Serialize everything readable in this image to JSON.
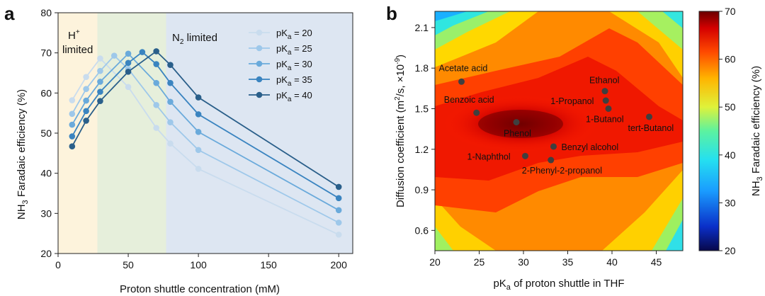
{
  "chart_data": [
    {
      "panel": "a",
      "type": "line",
      "xlabel": "Proton shuttle concentration (mM)",
      "ylabel": "NH3 Faradaic efficiency (%)",
      "xlim": [
        0,
        210
      ],
      "ylim": [
        20,
        80
      ],
      "xticks": [
        0,
        50,
        100,
        150,
        200
      ],
      "yticks": [
        20,
        30,
        40,
        50,
        60,
        70,
        80
      ],
      "regions": [
        {
          "label_main": "H",
          "label_sup": "+",
          "label_line2": "limited",
          "x0": 0,
          "x1": 28,
          "color": "#fdf3dc"
        },
        {
          "label_main": "",
          "x0": 28,
          "x1": 77,
          "color": "#e6efdb"
        },
        {
          "label_main": "N",
          "label_sub": "2",
          "label_after": " limited",
          "x0": 77,
          "x1": 210,
          "color": "#dde6f2"
        }
      ],
      "series": [
        {
          "label_pre": "pK",
          "label_sub": "a",
          "label_post": " = 20",
          "color": "#c9dcee",
          "x": [
            10,
            20,
            30,
            50,
            70,
            80,
            100,
            200
          ],
          "y": [
            58.2,
            64.0,
            68.6,
            61.5,
            51.3,
            47.4,
            41.1,
            24.7
          ]
        },
        {
          "label_pre": "pK",
          "label_sub": "a",
          "label_post": " = 25",
          "color": "#9ec8ea",
          "x": [
            10,
            20,
            30,
            40,
            50,
            70,
            80,
            100,
            200
          ],
          "y": [
            54.8,
            61.0,
            65.5,
            69.3,
            66.0,
            57.0,
            52.7,
            45.8,
            27.7
          ]
        },
        {
          "label_pre": "pK",
          "label_sub": "a",
          "label_post": " = 30",
          "color": "#6aaadb",
          "x": [
            10,
            20,
            30,
            50,
            70,
            80,
            100,
            200
          ],
          "y": [
            52.1,
            58.1,
            62.8,
            69.8,
            62.5,
            57.8,
            50.3,
            30.8
          ]
        },
        {
          "label_pre": "pK",
          "label_sub": "a",
          "label_post": " = 35",
          "color": "#3a84c0",
          "x": [
            10,
            20,
            30,
            50,
            60,
            70,
            80,
            100,
            200
          ],
          "y": [
            49.2,
            55.5,
            60.3,
            67.5,
            70.2,
            67.2,
            62.5,
            54.7,
            33.8
          ]
        },
        {
          "label_pre": "pK",
          "label_sub": "a",
          "label_post": " = 40",
          "color": "#2a5f8a",
          "x": [
            10,
            20,
            30,
            50,
            70,
            80,
            100,
            200
          ],
          "y": [
            46.7,
            53.1,
            58.0,
            65.3,
            70.4,
            67.0,
            58.9,
            36.6
          ]
        }
      ]
    },
    {
      "panel": "b",
      "type": "heatmap",
      "xlabel": "pKa of proton shuttle in THF",
      "ylabel": "Diffusion coefficient (m2/s, ×10-9)",
      "xlim": [
        20,
        48
      ],
      "ylim": [
        0.45,
        2.22
      ],
      "xticks": [
        20,
        25,
        30,
        35,
        40,
        45
      ],
      "yticks": [
        0.6,
        0.9,
        1.2,
        1.5,
        1.8,
        2.1
      ],
      "colorbar": {
        "label": "NH3 Faradaic efficiency (%)",
        "range": [
          20,
          70
        ],
        "ticks": [
          20,
          30,
          40,
          50,
          60,
          70
        ]
      },
      "points": [
        {
          "name": "Acetate acid",
          "x": 23.0,
          "y": 1.7
        },
        {
          "name": "Benzoic acid",
          "x": 24.7,
          "y": 1.47
        },
        {
          "name": "Phenol",
          "x": 29.2,
          "y": 1.4
        },
        {
          "name": "1-Naphthol",
          "x": 30.2,
          "y": 1.15
        },
        {
          "name": "Benzyl alcohol",
          "x": 33.4,
          "y": 1.22
        },
        {
          "name": "2-Phenyl-2-propanol",
          "x": 33.1,
          "y": 1.12
        },
        {
          "name": "Ethanol",
          "x": 39.2,
          "y": 1.63
        },
        {
          "name": "1-Propanol",
          "x": 39.3,
          "y": 1.56
        },
        {
          "name": "1-Butanol",
          "x": 39.6,
          "y": 1.5
        },
        {
          "name": "tert-Butanol",
          "x": 44.2,
          "y": 1.44
        }
      ]
    }
  ],
  "figure": {
    "panel_a_letter": "a",
    "panel_b_letter": "b",
    "a_ylabel_nh": "NH",
    "a_ylabel_sub": "3",
    "a_ylabel_rest": " Faradaic efficiency (%)",
    "b_xlabel_pre": "pK",
    "b_xlabel_sub": "a",
    "b_xlabel_post": " of proton shuttle in THF",
    "b_ylabel_pre": "Diffusion coefficient (m",
    "b_ylabel_sup1": "2",
    "b_ylabel_mid": "/s, ×10",
    "b_ylabel_sup2": "-9",
    "b_ylabel_post": ")",
    "cb_label_pre": "NH",
    "cb_label_sub": "3",
    "cb_label_post": " Faradaic efficiency (%)"
  }
}
